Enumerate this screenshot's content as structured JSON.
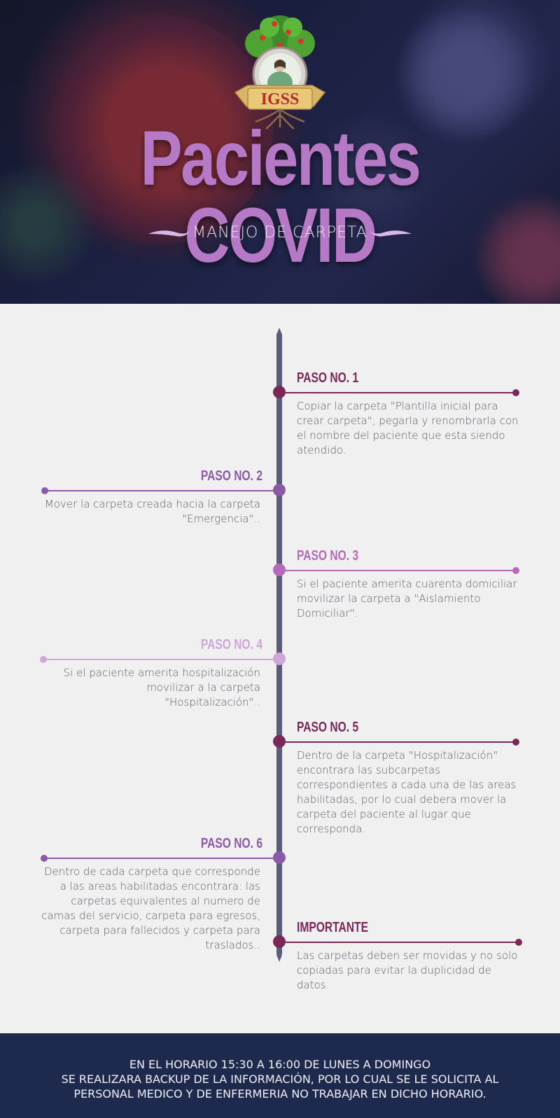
{
  "header": {
    "title_word1": "Pacientes",
    "title_word2": "COVID",
    "subtitle": "MANEJO DE CARPETA",
    "logo_text": "IGSS"
  },
  "steps": [
    {
      "title": "PASO NO. 1",
      "text": "Copiar la carpeta \"Plantilla inicial para crear carpeta\", pegarla y renombrarla con el nombre del paciente que esta siendo atendido.",
      "side": "right",
      "color": "#7a2858"
    },
    {
      "title": "PASO NO. 2",
      "text": "Mover la carpeta creada hacia la carpeta \"Emergencia\"..",
      "side": "left",
      "color": "#8a5aa6"
    },
    {
      "title": "PASO NO. 3",
      "text": "Si el paciente amerita cuarenta domiciliar movilizar la carpeta a \"Aislamiento Domiciliar\".",
      "side": "right",
      "color": "#b56ab8"
    },
    {
      "title": "PASO NO. 4",
      "text": "Si el paciente amerita hospitalización movilizar a la carpeta \"Hospitalización\"..",
      "side": "left",
      "color": "#cfa6d8"
    },
    {
      "title": "PASO NO. 5",
      "text": "Dentro de la carpeta \"Hospitalización\" encontrara las subcarpetas correspondientes a cada una de las areas habilitadas, por lo cual debera mover la carpeta del paciente al lugar que corresponda.",
      "side": "right",
      "color": "#7a2858"
    },
    {
      "title": "PASO NO. 6",
      "text": "Dentro de cada carpeta que corresponde a las areas habilitadas encontrara: las carpetas equivalentes al numero de camas del servicio, carpeta para egresos, carpeta para fallecidos y carpeta para traslados..",
      "side": "left",
      "color": "#8a5aa6"
    },
    {
      "title": "IMPORTANTE",
      "text": "Las carpetas deben ser movidas y no solo copiadas para evitar la duplicidad de datos.",
      "side": "right",
      "color": "#7a2858"
    }
  ],
  "footer": {
    "line1": "EN EL HORARIO 15:30 A 16:00 DE LUNES A DOMINGO",
    "line2": "SE REALIZARA BACKUP DE LA INFORMACIÓN, POR LO CUAL SE LE SOLICITA AL",
    "line3": "PERSONAL MEDICO Y DE ENFERMERIA NO TRABAJAR EN DICHO HORARIO."
  }
}
